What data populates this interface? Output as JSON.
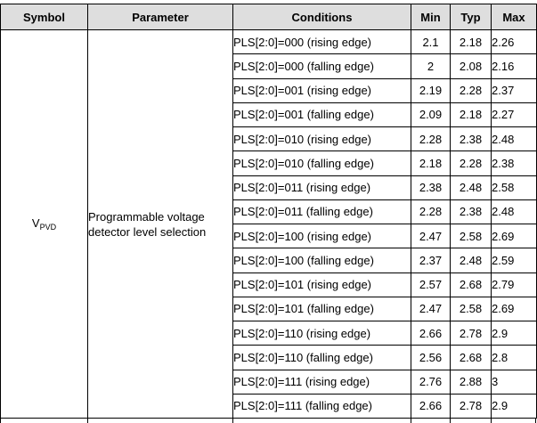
{
  "table": {
    "headers": [
      "Symbol",
      "Parameter",
      "Conditions",
      "Min",
      "Typ",
      "Max"
    ],
    "symbol": {
      "main": "V",
      "sub": "PVD"
    },
    "parameter": {
      "line1": "Programmable voltage",
      "line2": "detector level selection"
    },
    "rows": [
      {
        "condition": "PLS[2:0]=000 (rising edge)",
        "min": "2.1",
        "typ": "2.18",
        "max": "2.26"
      },
      {
        "condition": "PLS[2:0]=000 (falling edge)",
        "min": "2",
        "typ": "2.08",
        "max": "2.16"
      },
      {
        "condition": "PLS[2:0]=001 (rising edge)",
        "min": "2.19",
        "typ": "2.28",
        "max": "2.37"
      },
      {
        "condition": "PLS[2:0]=001 (falling edge)",
        "min": "2.09",
        "typ": "2.18",
        "max": "2.27"
      },
      {
        "condition": "PLS[2:0]=010 (rising edge)",
        "min": "2.28",
        "typ": "2.38",
        "max": "2.48"
      },
      {
        "condition": "PLS[2:0]=010 (falling edge)",
        "min": "2.18",
        "typ": "2.28",
        "max": "2.38"
      },
      {
        "condition": "PLS[2:0]=011 (rising edge)",
        "min": "2.38",
        "typ": "2.48",
        "max": "2.58"
      },
      {
        "condition": "PLS[2:0]=011 (falling edge)",
        "min": "2.28",
        "typ": "2.38",
        "max": "2.48"
      },
      {
        "condition": "PLS[2:0]=100 (rising edge)",
        "min": "2.47",
        "typ": "2.58",
        "max": "2.69"
      },
      {
        "condition": "PLS[2:0]=100 (falling edge)",
        "min": "2.37",
        "typ": "2.48",
        "max": "2.59"
      },
      {
        "condition": "PLS[2:0]=101 (rising edge)",
        "min": "2.57",
        "typ": "2.68",
        "max": "2.79"
      },
      {
        "condition": "PLS[2:0]=101 (falling edge)",
        "min": "2.47",
        "typ": "2.58",
        "max": "2.69"
      },
      {
        "condition": "PLS[2:0]=110 (rising edge)",
        "min": "2.66",
        "typ": "2.78",
        "max": "2.9"
      },
      {
        "condition": "PLS[2:0]=110 (falling edge)",
        "min": "2.56",
        "typ": "2.68",
        "max": "2.8"
      },
      {
        "condition": "PLS[2:0]=111 (rising edge)",
        "min": "2.76",
        "typ": "2.88",
        "max": "3"
      },
      {
        "condition": "PLS[2:0]=111 (falling edge)",
        "min": "2.66",
        "typ": "2.78",
        "max": "2.9"
      }
    ]
  }
}
